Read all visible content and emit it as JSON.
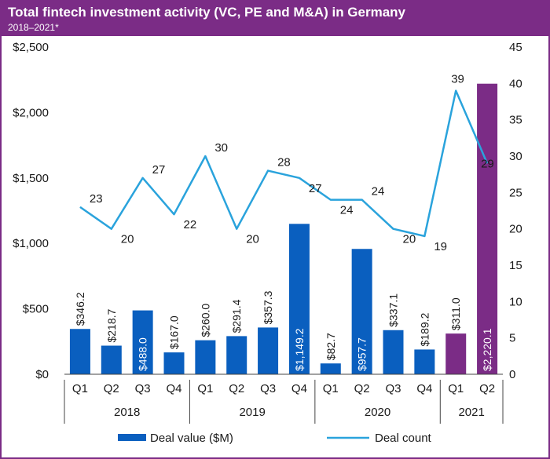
{
  "header": {
    "title": "Total fintech investment activity (VC, PE and M&A) in Germany",
    "subtitle": "2018–2021*"
  },
  "colors": {
    "bar_blue": "#0a5fbf",
    "bar_purple": "#7b2c86",
    "line_blue": "#2aa3dc",
    "header_purple": "#7b2c86"
  },
  "chart_data": {
    "type": "bar",
    "categories": [
      "Q1",
      "Q2",
      "Q3",
      "Q4",
      "Q1",
      "Q2",
      "Q3",
      "Q4",
      "Q1",
      "Q2",
      "Q3",
      "Q4",
      "Q1",
      "Q2"
    ],
    "years": [
      {
        "label": "2018",
        "start": 0,
        "end": 3
      },
      {
        "label": "2019",
        "start": 4,
        "end": 7
      },
      {
        "label": "2020",
        "start": 8,
        "end": 11
      },
      {
        "label": "2021",
        "start": 12,
        "end": 13
      }
    ],
    "series": [
      {
        "name": "Deal value ($M)",
        "type": "bar",
        "axis": "left",
        "values": [
          346.2,
          218.7,
          488.0,
          167.0,
          260.0,
          291.4,
          357.3,
          1149.2,
          82.7,
          957.7,
          337.1,
          189.2,
          311.0,
          2220.1
        ],
        "labels": [
          "$346.2",
          "$218.7",
          "$488.0",
          "$167.0",
          "$260.0",
          "$291.4",
          "$357.3",
          "$1,149.2",
          "$82.7",
          "$957.7",
          "$337.1",
          "$189.2",
          "$311.0",
          "$2,220.1"
        ],
        "highlight_from_index": 12
      },
      {
        "name": "Deal count",
        "type": "line",
        "axis": "right",
        "values": [
          23,
          20,
          27,
          22,
          30,
          20,
          28,
          27,
          24,
          24,
          20,
          19,
          39,
          29
        ],
        "labels": [
          "23",
          "20",
          "27",
          "22",
          "30",
          "20",
          "28",
          "27",
          "24",
          "24",
          "20",
          "19",
          "39",
          "29"
        ]
      }
    ],
    "y_left": {
      "ylim": [
        0,
        2500
      ],
      "ticks": [
        0,
        500,
        1000,
        1500,
        2000,
        2500
      ],
      "tick_labels": [
        "$0",
        "$500",
        "$1,000",
        "$1,500",
        "$2,000",
        "$2,500"
      ]
    },
    "y_right": {
      "ylim": [
        0,
        45
      ],
      "ticks": [
        0,
        5,
        10,
        15,
        20,
        25,
        30,
        35,
        40,
        45
      ],
      "tick_labels": [
        "0",
        "5",
        "10",
        "15",
        "20",
        "25",
        "30",
        "35",
        "40",
        "45"
      ]
    },
    "grid": false,
    "legend": {
      "position": "bottom",
      "bar_label": "Deal value ($M)",
      "line_label": "Deal count"
    }
  }
}
